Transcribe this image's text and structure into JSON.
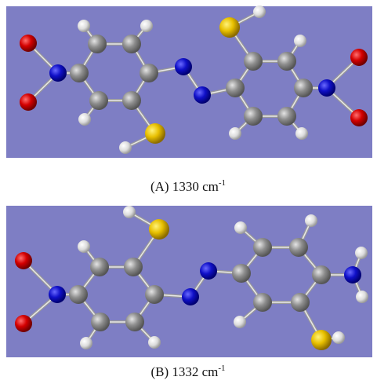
{
  "panels": [
    {
      "label": "(A) 1330 cm",
      "exponent": "-1"
    },
    {
      "label": "(B) 1332 cm",
      "exponent": "-1"
    }
  ]
}
